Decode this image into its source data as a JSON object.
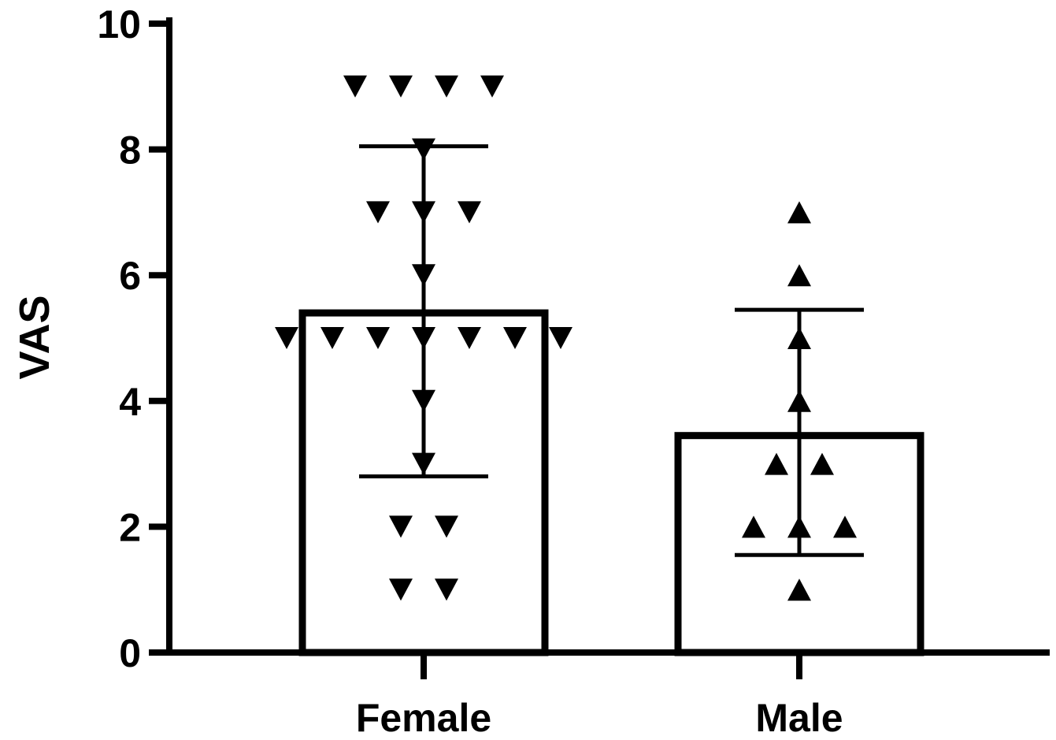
{
  "chart_data": {
    "type": "bar",
    "title": "",
    "xlabel": "",
    "ylabel": "VAS",
    "ylim": [
      0,
      10
    ],
    "yticks": [
      0,
      2,
      4,
      6,
      8,
      10
    ],
    "grid": false,
    "legend": "none",
    "categories": [
      "Female",
      "Male"
    ],
    "bars": [
      {
        "category": "Female",
        "mean": 5.4,
        "error_low": 2.8,
        "error_high": 8.05,
        "marker": "triangle-down",
        "points": [
          9,
          9,
          9,
          9,
          8,
          7,
          7,
          7,
          6,
          5,
          5,
          5,
          5,
          5,
          5,
          5,
          4,
          3,
          2,
          2,
          1,
          1
        ]
      },
      {
        "category": "Male",
        "mean": 3.45,
        "error_low": 1.55,
        "error_high": 5.45,
        "marker": "triangle-up",
        "points": [
          7,
          6,
          5,
          4,
          3,
          3,
          2,
          2,
          2,
          1
        ]
      }
    ],
    "colors": {
      "bar_fill": "#ffffff",
      "stroke": "#000000",
      "marker": "#000000"
    }
  }
}
